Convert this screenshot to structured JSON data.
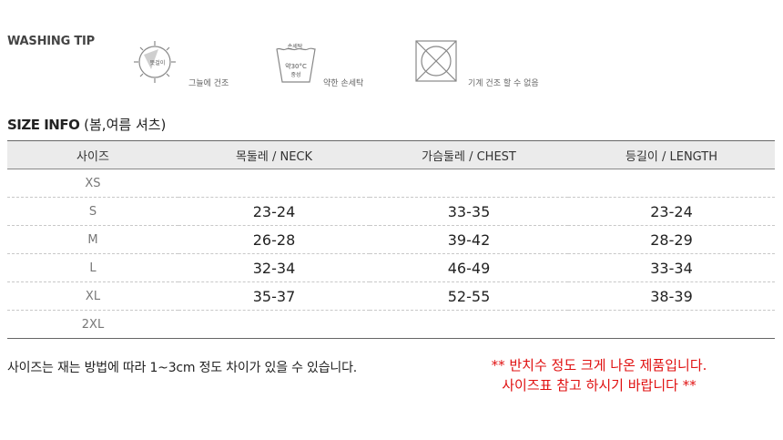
{
  "washing": {
    "title": "WASHING TIP",
    "items": [
      {
        "icon": "shade-dry-icon",
        "inner": "뜻걸이",
        "caption": "그늘에 건조"
      },
      {
        "icon": "hand-wash-icon",
        "top": "손세탁",
        "temp": "약30°C",
        "sub": "중성",
        "caption": "약한 손세탁"
      },
      {
        "icon": "no-tumble-dry-icon",
        "caption": "기계 건조 할 수 없음"
      }
    ]
  },
  "size_info": {
    "title_en": "SIZE INFO",
    "title_ko": "(봄,여름 셔츠)",
    "headers": [
      "사이즈",
      "목둘레 / NECK",
      "가슴둘레 / CHEST",
      "등길이 / LENGTH"
    ],
    "rows": [
      {
        "size": "XS",
        "neck": "",
        "chest": "",
        "length": ""
      },
      {
        "size": "S",
        "neck": "23-24",
        "chest": "33-35",
        "length": "23-24"
      },
      {
        "size": "M",
        "neck": "26-28",
        "chest": "39-42",
        "length": "28-29"
      },
      {
        "size": "L",
        "neck": "32-34",
        "chest": "46-49",
        "length": "33-34"
      },
      {
        "size": "XL",
        "neck": "35-37",
        "chest": "52-55",
        "length": "38-39"
      },
      {
        "size": "2XL",
        "neck": "",
        "chest": "",
        "length": ""
      }
    ]
  },
  "notes": {
    "left": "사이즈는 재는 방법에 따라 1~3cm 정도 차이가 있을 수 있습니다.",
    "right_line1": "** 반치수 정도 크게 나온 제품입니다.",
    "right_line2": "사이즈표 참고 하시기 바랍니다 **"
  },
  "colors": {
    "header_bg": "#ebebeb",
    "note_red": "#e01010"
  }
}
